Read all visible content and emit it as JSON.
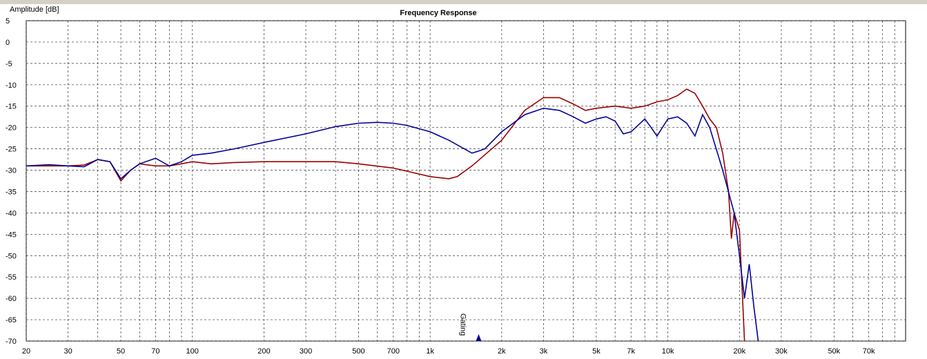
{
  "chart_data": {
    "type": "line",
    "title": "Frequency Response",
    "y_label": "Amplitude [dB]",
    "xscale": "log",
    "xlim": [
      20,
      100000
    ],
    "ylim": [
      -70,
      5
    ],
    "yticks": [
      5,
      0,
      -5,
      -10,
      -15,
      -20,
      -25,
      -30,
      -35,
      -40,
      -45,
      -50,
      -55,
      -60,
      -65,
      -70
    ],
    "xticks": [
      20,
      30,
      50,
      70,
      100,
      200,
      300,
      500,
      700,
      {
        "value": 1000,
        "label": "1k"
      },
      {
        "value": 2000,
        "label": "2k"
      },
      {
        "value": 3000,
        "label": "3k"
      },
      {
        "value": 5000,
        "label": "5k"
      },
      {
        "value": 7000,
        "label": "7k"
      },
      {
        "value": 10000,
        "label": "10k"
      },
      {
        "value": 20000,
        "label": "20k"
      },
      {
        "value": 30000,
        "label": "30k"
      },
      {
        "value": 50000,
        "label": "50k"
      },
      {
        "value": 70000,
        "label": "70k"
      }
    ],
    "xminor": [
      40,
      60,
      80,
      90,
      400,
      600,
      800,
      900,
      4000,
      6000,
      8000,
      9000,
      40000,
      60000,
      80000,
      90000
    ],
    "grid": true,
    "annotations": [
      {
        "text": "Gating",
        "x": 1600
      }
    ],
    "series": [
      {
        "name": "Red",
        "color": "#990000",
        "x": [
          20,
          30,
          35,
          40,
          45,
          50,
          55,
          60,
          70,
          80,
          90,
          100,
          120,
          150,
          200,
          300,
          400,
          500,
          700,
          1000,
          1200,
          1300,
          1500,
          2000,
          2500,
          3000,
          3500,
          4000,
          4500,
          5000,
          6000,
          7000,
          8000,
          9000,
          10000,
          11000,
          12000,
          13000,
          14000,
          15000,
          16000,
          17000,
          18000,
          18500,
          19000,
          20000,
          21000
        ],
        "values": [
          -29,
          -29,
          -28.8,
          -27.5,
          -28,
          -32.5,
          -30,
          -28.5,
          -29,
          -29,
          -28.5,
          -28,
          -28.5,
          -28.2,
          -28,
          -28,
          -28,
          -28.5,
          -29.5,
          -31.5,
          -32,
          -31.5,
          -29,
          -23,
          -16,
          -13,
          -13,
          -14.5,
          -16,
          -15.5,
          -15,
          -15.5,
          -15,
          -14,
          -13.5,
          -12.5,
          -11,
          -12,
          -15,
          -18,
          -20,
          -26,
          -35,
          -46,
          -40,
          -44,
          -70
        ]
      },
      {
        "name": "Blue",
        "color": "#000099",
        "x": [
          20,
          25,
          30,
          35,
          40,
          45,
          50,
          55,
          60,
          70,
          80,
          90,
          100,
          120,
          150,
          200,
          300,
          400,
          500,
          600,
          700,
          800,
          1000,
          1200,
          1500,
          1600,
          1700,
          2000,
          2500,
          3000,
          3500,
          4000,
          4500,
          5000,
          5500,
          6000,
          6500,
          7000,
          8000,
          8500,
          9000,
          10000,
          11000,
          12000,
          13000,
          14000,
          15000,
          17000,
          19000,
          20000,
          21000,
          22000,
          23000,
          24000
        ],
        "values": [
          -29,
          -28.7,
          -29,
          -29.2,
          -27.5,
          -28,
          -32,
          -30,
          -28.5,
          -27.2,
          -29,
          -28,
          -26.5,
          -26,
          -25,
          -23.5,
          -21.5,
          -19.8,
          -19,
          -18.8,
          -19,
          -19.5,
          -21,
          -23,
          -26,
          -25.5,
          -25,
          -21,
          -17,
          -15.5,
          -16,
          -17.5,
          -19,
          -18,
          -17.5,
          -18.5,
          -21.5,
          -21,
          -18,
          -20,
          -22,
          -18,
          -17.5,
          -19,
          -22,
          -17,
          -20,
          -30,
          -40,
          -50,
          -60,
          -52,
          -62,
          -70
        ]
      }
    ]
  }
}
